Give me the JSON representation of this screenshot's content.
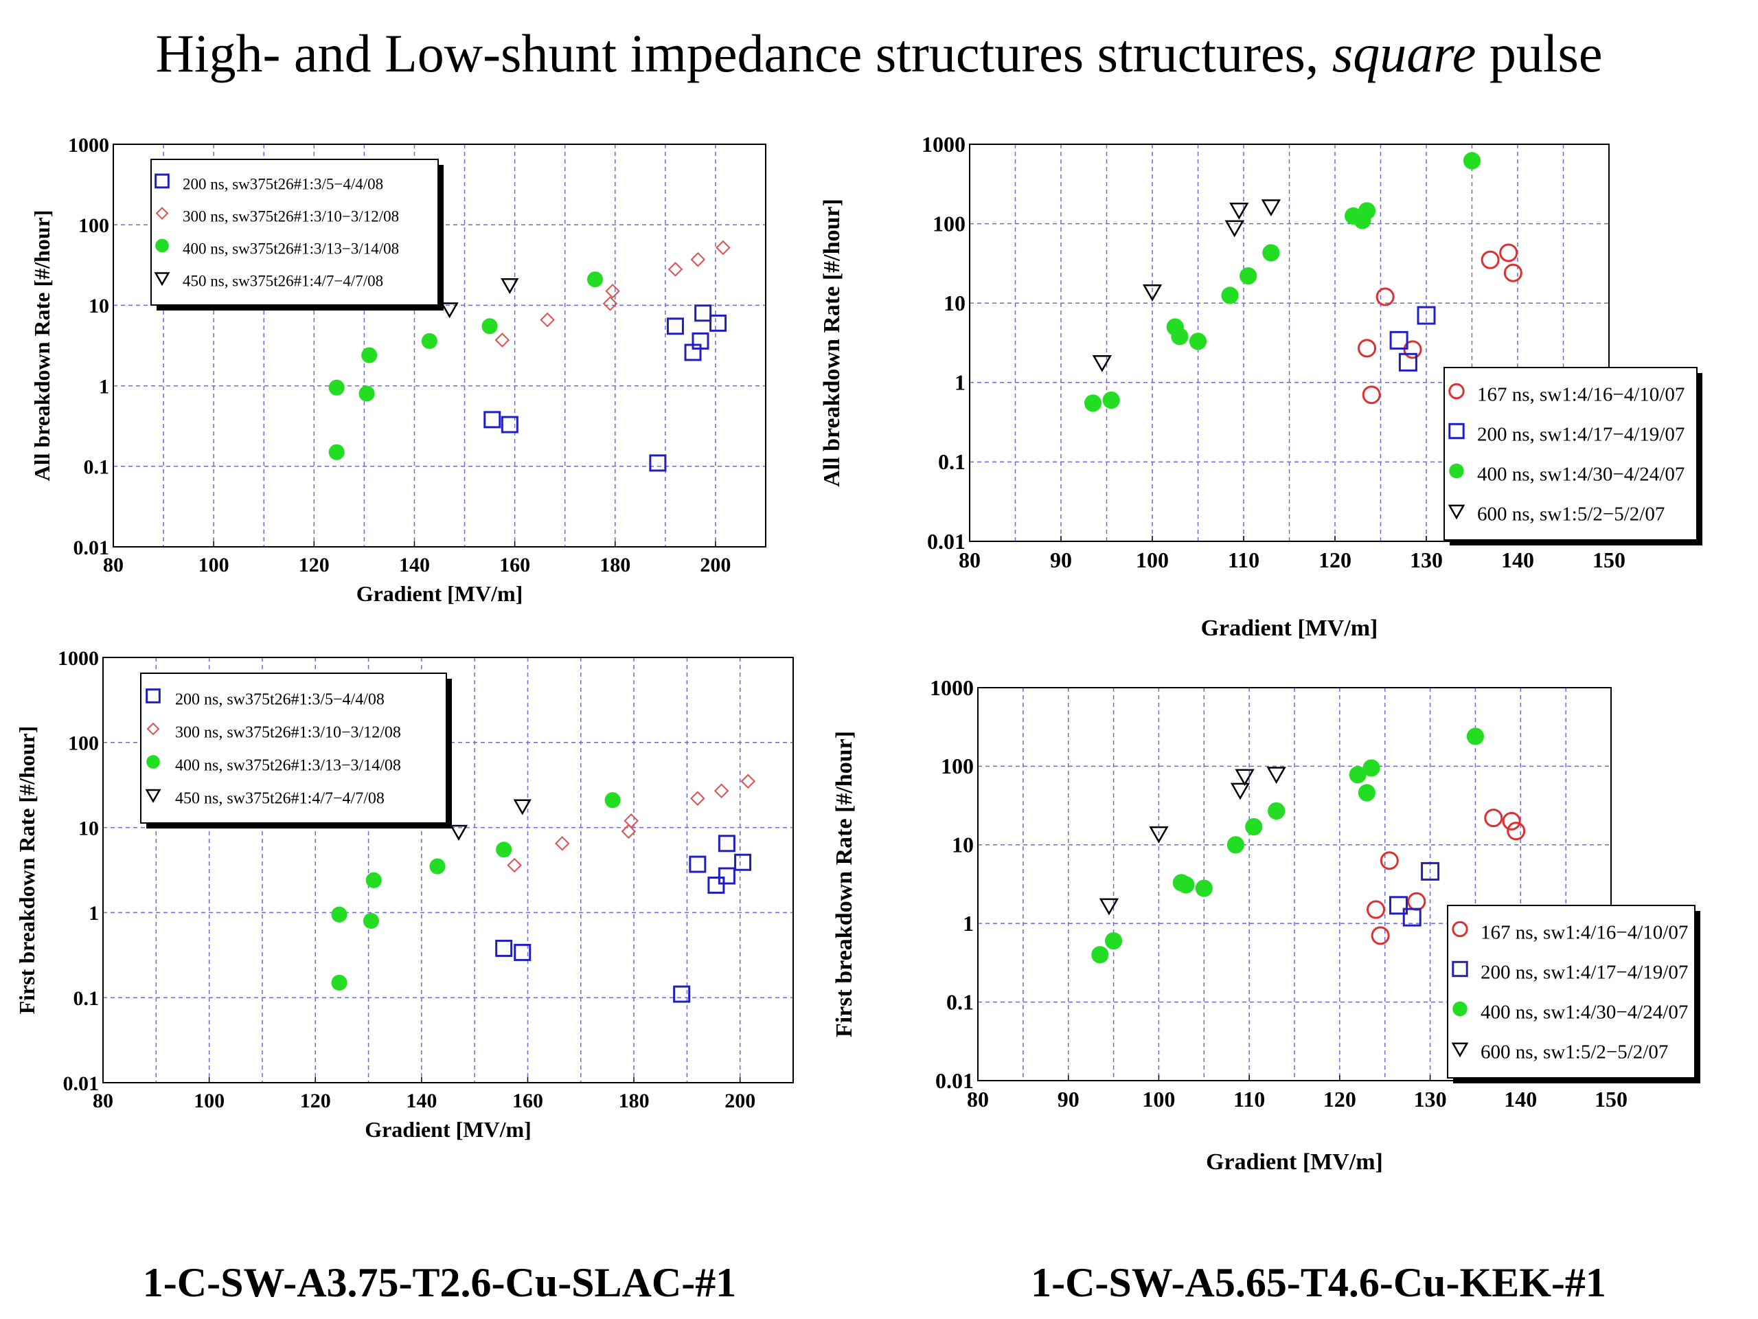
{
  "page": {
    "title_main": "High- and Low-shunt impedance structures structures, ",
    "title_italic": "square",
    "title_end": " pulse",
    "caption_left": "1-C-SW-A3.75-T2.6-Cu-SLAC-#1",
    "caption_right": "1-C-SW-A5.65-T4.6-Cu-KEK-#1"
  },
  "chart_data": [
    {
      "id": "slac-all",
      "type": "scatter",
      "xlabel": "Gradient [MV/m]",
      "ylabel": "All breakdown Rate [#/hour]",
      "xlim": [
        80,
        210
      ],
      "ylim": [
        0.01,
        1000
      ],
      "log_y": true,
      "xticks": [
        80,
        100,
        120,
        140,
        160,
        180,
        200
      ],
      "yticks": [
        "0.01",
        "0.1",
        "1",
        "10",
        "100",
        "1000"
      ],
      "grid": true,
      "legend_position": "top-left",
      "series": [
        {
          "name": "200 ns, sw375t26#1:3/5−4/4/08",
          "marker": "square-open",
          "color": "#2020c0",
          "x": [
            155.5,
            159,
            188.5,
            192,
            195.5,
            197,
            197.5,
            200.5
          ],
          "y": [
            0.38,
            0.33,
            0.11,
            5.5,
            2.6,
            3.6,
            8,
            6
          ]
        },
        {
          "name": "300 ns, sw375t26#1:3/10−3/12/08",
          "marker": "diamond-open",
          "color": "#e05050",
          "x": [
            157.5,
            166.5,
            179,
            179.5,
            192,
            196.5,
            201.5
          ],
          "y": [
            3.7,
            6.6,
            10.5,
            15,
            28,
            37,
            52
          ]
        },
        {
          "name": "400 ns, sw375t26#1:3/13−3/14/08",
          "marker": "circle-filled",
          "color": "#22dd22",
          "x": [
            124.5,
            124.5,
            130.5,
            131,
            143,
            155,
            176
          ],
          "y": [
            0.15,
            0.95,
            0.8,
            2.4,
            3.6,
            5.5,
            21
          ]
        },
        {
          "name": "450 ns, sw375t26#1:4/7−4/7/08",
          "marker": "triangle-down-open",
          "color": "#000000",
          "x": [
            147,
            159
          ],
          "y": [
            9,
            18
          ]
        }
      ]
    },
    {
      "id": "slac-first",
      "type": "scatter",
      "xlabel": "Gradient [MV/m]",
      "ylabel": "First breakdown Rate [#/hour]",
      "xlim": [
        80,
        210
      ],
      "ylim": [
        0.01,
        1000
      ],
      "log_y": true,
      "xticks": [
        80,
        100,
        120,
        140,
        160,
        180,
        200
      ],
      "yticks": [
        "0.01",
        "0.1",
        "1",
        "10",
        "100",
        "1000"
      ],
      "grid": true,
      "legend_position": "top-left",
      "series": [
        {
          "name": "200 ns, sw375t26#1:3/5−4/4/08",
          "marker": "square-open",
          "color": "#2020c0",
          "x": [
            155.5,
            159,
            189,
            192,
            195.5,
            197.5,
            197.5,
            200.5
          ],
          "y": [
            0.38,
            0.34,
            0.11,
            3.7,
            2.1,
            2.7,
            6.5,
            3.9
          ]
        },
        {
          "name": "300 ns, sw375t26#1:3/10−3/12/08",
          "marker": "diamond-open",
          "color": "#e05050",
          "x": [
            157.5,
            166.5,
            179,
            179.5,
            192,
            196.5,
            201.5
          ],
          "y": [
            3.6,
            6.5,
            9,
            12,
            22,
            27,
            35
          ]
        },
        {
          "name": "400 ns, sw375t26#1:3/13−3/14/08",
          "marker": "circle-filled",
          "color": "#22dd22",
          "x": [
            124.5,
            124.5,
            130.5,
            131,
            143,
            155.5,
            176
          ],
          "y": [
            0.15,
            0.95,
            0.8,
            2.4,
            3.5,
            5.5,
            21
          ]
        },
        {
          "name": "450 ns, sw375t26#1:4/7−4/7/08",
          "marker": "triangle-down-open",
          "color": "#000000",
          "x": [
            147,
            159
          ],
          "y": [
            9,
            18
          ]
        }
      ]
    },
    {
      "id": "kek-all",
      "type": "scatter",
      "xlabel": "Gradient [MV/m]",
      "ylabel": "All breakdown Rate [#/hour]",
      "xlim": [
        80,
        150
      ],
      "ylim": [
        0.01,
        1000
      ],
      "log_y": true,
      "xticks": [
        80,
        90,
        100,
        110,
        120,
        130,
        140,
        150
      ],
      "yticks": [
        "0.01",
        "0.1",
        "1",
        "10",
        "100",
        "1000"
      ],
      "grid": true,
      "legend_position": "bottom-right",
      "series": [
        {
          "name": "167 ns, sw1:4/16−4/10/07",
          "marker": "circle-open",
          "color": "#dd3030",
          "x": [
            123.5,
            124,
            125.5,
            128.5,
            137,
            139,
            139.5
          ],
          "y": [
            2.7,
            0.7,
            12,
            2.6,
            35,
            43,
            24
          ]
        },
        {
          "name": "200 ns, sw1:4/17−4/19/07",
          "marker": "square-open",
          "color": "#2020c0",
          "x": [
            127,
            128,
            130
          ],
          "y": [
            3.4,
            1.8,
            7
          ]
        },
        {
          "name": "400 ns, sw1:4/30−4/24/07",
          "marker": "circle-filled",
          "color": "#22dd22",
          "x": [
            93.5,
            95.5,
            102.5,
            103,
            105,
            108.5,
            110.5,
            113,
            122,
            123,
            123.5,
            135
          ],
          "y": [
            0.55,
            0.6,
            5,
            3.8,
            3.3,
            12.5,
            22,
            43,
            125,
            110,
            145,
            620
          ]
        },
        {
          "name": "600 ns, sw1:5/2−5/2/07",
          "marker": "triangle-down-open",
          "color": "#000000",
          "x": [
            94.5,
            100,
            109,
            109.5,
            113
          ],
          "y": [
            1.8,
            14,
            90,
            150,
            165
          ]
        }
      ]
    },
    {
      "id": "kek-first",
      "type": "scatter",
      "xlabel": "Gradient [MV/m]",
      "ylabel": "First breakdown Rate [#/hour]",
      "xlim": [
        80,
        150
      ],
      "ylim": [
        0.01,
        1000
      ],
      "log_y": true,
      "xticks": [
        80,
        90,
        100,
        110,
        120,
        130,
        140,
        150
      ],
      "yticks": [
        "0.01",
        "0.1",
        "1",
        "10",
        "100",
        "1000"
      ],
      "grid": true,
      "legend_position": "bottom-right",
      "series": [
        {
          "name": "167 ns, sw1:4/16−4/10/07",
          "marker": "circle-open",
          "color": "#dd3030",
          "x": [
            124,
            124.5,
            125.5,
            128.5,
            137,
            139,
            139.5
          ],
          "y": [
            1.5,
            0.7,
            6.3,
            1.9,
            22,
            20,
            15
          ]
        },
        {
          "name": "200 ns, sw1:4/17−4/19/07",
          "marker": "square-open",
          "color": "#2020c0",
          "x": [
            126.5,
            128,
            130
          ],
          "y": [
            1.7,
            1.2,
            4.6
          ]
        },
        {
          "name": "400 ns, sw1:4/30−4/24/07",
          "marker": "circle-filled",
          "color": "#22dd22",
          "x": [
            93.5,
            95,
            102.5,
            103,
            105,
            108.5,
            110.5,
            113,
            122,
            123,
            123.5,
            135
          ],
          "y": [
            0.4,
            0.6,
            3.3,
            3.1,
            2.8,
            10,
            17,
            27,
            78,
            46,
            95,
            240
          ]
        },
        {
          "name": "600 ns, sw1:5/2−5/2/07",
          "marker": "triangle-down-open",
          "color": "#000000",
          "x": [
            94.5,
            100,
            109,
            109.5,
            113
          ],
          "y": [
            1.7,
            14,
            50,
            75,
            80
          ]
        }
      ]
    }
  ]
}
